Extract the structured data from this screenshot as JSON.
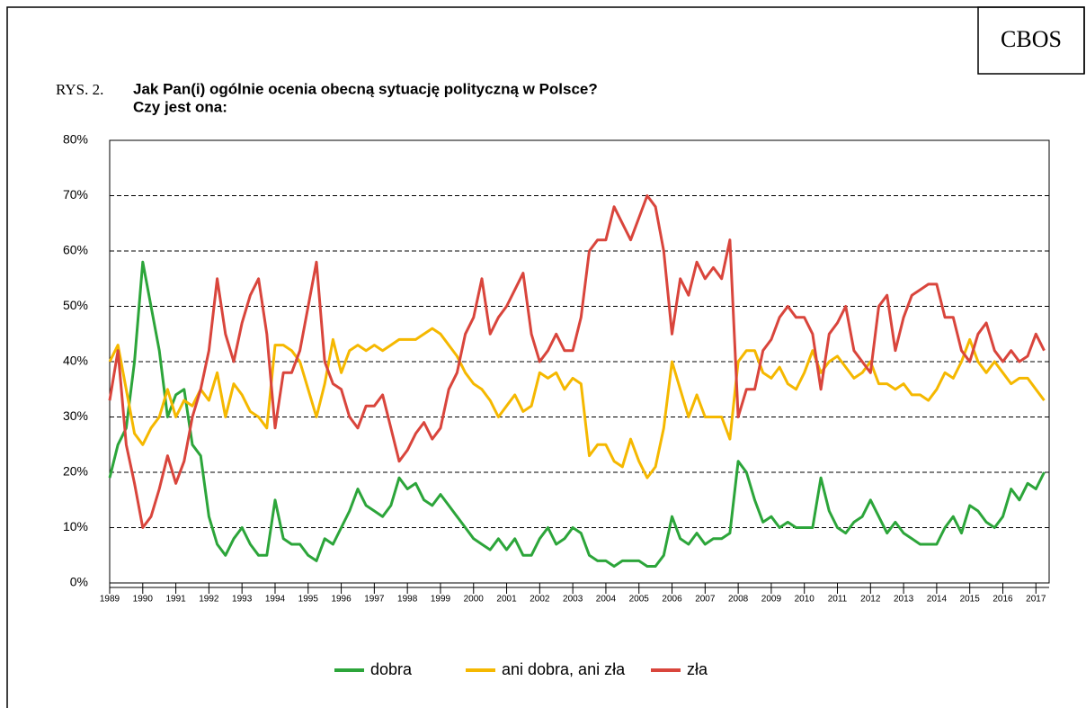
{
  "chart_data": {
    "type": "line",
    "source": "CBOS",
    "label": "RYS. 2.",
    "title": [
      "Jak Pan(i) ogólnie ocenia obecną sytuację polityczną w Polsce?",
      "Czy jest ona:"
    ],
    "x": [
      1989,
      1989.25,
      1989.5,
      1989.75,
      1990,
      1990.25,
      1990.5,
      1990.75,
      1991,
      1991.25,
      1991.5,
      1991.75,
      1992,
      1992.25,
      1992.5,
      1992.75,
      1993,
      1993.25,
      1993.5,
      1993.75,
      1994,
      1994.25,
      1994.5,
      1994.75,
      1995,
      1995.25,
      1995.5,
      1995.75,
      1996,
      1996.25,
      1996.5,
      1996.75,
      1997,
      1997.25,
      1997.5,
      1997.75,
      1998,
      1998.25,
      1998.5,
      1998.75,
      1999,
      1999.25,
      1999.5,
      1999.75,
      2000,
      2000.25,
      2000.5,
      2000.75,
      2001,
      2001.25,
      2001.5,
      2001.75,
      2002,
      2002.25,
      2002.5,
      2002.75,
      2003,
      2003.25,
      2003.5,
      2003.75,
      2004,
      2004.25,
      2004.5,
      2004.75,
      2005,
      2005.25,
      2005.5,
      2005.75,
      2006,
      2006.25,
      2006.5,
      2006.75,
      2007,
      2007.25,
      2007.5,
      2007.75,
      2008,
      2008.25,
      2008.5,
      2008.75,
      2009,
      2009.25,
      2009.5,
      2009.75,
      2010,
      2010.25,
      2010.5,
      2010.75,
      2011,
      2011.25,
      2011.5,
      2011.75,
      2012,
      2012.25,
      2012.5,
      2012.75,
      2013,
      2013.25,
      2013.5,
      2013.75,
      2014,
      2014.25,
      2014.5,
      2014.75,
      2015,
      2015.25,
      2015.5,
      2015.75,
      2016,
      2016.25,
      2016.5,
      2016.75,
      2017,
      2017.25
    ],
    "series": [
      {
        "name": "dobra",
        "color": "#2ca53a",
        "values": [
          19,
          25,
          28,
          40,
          58,
          50,
          42,
          30,
          34,
          35,
          25,
          23,
          12,
          7,
          5,
          8,
          10,
          7,
          5,
          5,
          15,
          8,
          7,
          7,
          5,
          4,
          8,
          7,
          10,
          13,
          17,
          14,
          13,
          12,
          14,
          19,
          17,
          18,
          15,
          14,
          16,
          14,
          12,
          10,
          8,
          7,
          6,
          8,
          6,
          8,
          5,
          5,
          8,
          10,
          7,
          8,
          10,
          9,
          5,
          4,
          4,
          3,
          4,
          4,
          4,
          3,
          3,
          5,
          12,
          8,
          7,
          9,
          7,
          8,
          8,
          9,
          22,
          20,
          15,
          11,
          12,
          10,
          11,
          10,
          10,
          10,
          19,
          13,
          10,
          9,
          11,
          12,
          15,
          12,
          9,
          11,
          9,
          8,
          7,
          7,
          7,
          10,
          12,
          9,
          14,
          13,
          11,
          10,
          12,
          17,
          15,
          18,
          17,
          20
        ]
      },
      {
        "name": "ani dobra, ani zła",
        "color": "#f5b800",
        "values": [
          40,
          43,
          35,
          27,
          25,
          28,
          30,
          35,
          30,
          33,
          32,
          35,
          33,
          38,
          30,
          36,
          34,
          31,
          30,
          28,
          43,
          43,
          42,
          40,
          35,
          30,
          36,
          44,
          38,
          42,
          43,
          42,
          43,
          42,
          43,
          44,
          44,
          44,
          45,
          46,
          45,
          43,
          41,
          38,
          36,
          35,
          33,
          30,
          32,
          34,
          31,
          32,
          38,
          37,
          38,
          35,
          37,
          36,
          23,
          25,
          25,
          22,
          21,
          26,
          22,
          19,
          21,
          28,
          40,
          35,
          30,
          34,
          30,
          30,
          30,
          26,
          40,
          42,
          42,
          38,
          37,
          39,
          36,
          35,
          38,
          42,
          38,
          40,
          41,
          39,
          37,
          38,
          40,
          36,
          36,
          35,
          36,
          34,
          34,
          33,
          35,
          38,
          37,
          40,
          44,
          40,
          38,
          40,
          38,
          36,
          37,
          37,
          35,
          33
        ]
      },
      {
        "name": "zła",
        "color": "#d9453c",
        "values": [
          33,
          42,
          25,
          18,
          10,
          12,
          17,
          23,
          18,
          22,
          30,
          35,
          42,
          55,
          45,
          40,
          47,
          52,
          55,
          45,
          28,
          38,
          38,
          42,
          50,
          58,
          40,
          36,
          35,
          30,
          28,
          32,
          32,
          34,
          28,
          22,
          24,
          27,
          29,
          26,
          28,
          35,
          38,
          45,
          48,
          55,
          45,
          48,
          50,
          53,
          56,
          45,
          40,
          42,
          45,
          42,
          42,
          48,
          60,
          62,
          62,
          68,
          65,
          62,
          66,
          70,
          68,
          60,
          45,
          55,
          52,
          58,
          55,
          57,
          55,
          62,
          30,
          35,
          35,
          42,
          44,
          48,
          50,
          48,
          48,
          45,
          35,
          45,
          47,
          50,
          42,
          40,
          38,
          50,
          52,
          42,
          48,
          52,
          53,
          54,
          54,
          48,
          48,
          42,
          40,
          45,
          47,
          42,
          40,
          42,
          40,
          41,
          45,
          42
        ]
      }
    ],
    "xlim": [
      1989,
      2017.4
    ],
    "xticks": [
      1989,
      1990,
      1991,
      1992,
      1993,
      1994,
      1995,
      1996,
      1997,
      1998,
      1999,
      2000,
      2001,
      2002,
      2003,
      2004,
      2005,
      2006,
      2007,
      2008,
      2009,
      2010,
      2011,
      2012,
      2013,
      2014,
      2015,
      2016,
      2017
    ],
    "ylim": [
      0,
      80
    ],
    "yticks": [
      {
        "value": 0,
        "label": "0%"
      },
      {
        "value": 10,
        "label": "10%"
      },
      {
        "value": 20,
        "label": "20%"
      },
      {
        "value": 30,
        "label": "30%"
      },
      {
        "value": 40,
        "label": "40%"
      },
      {
        "value": 50,
        "label": "50%"
      },
      {
        "value": 60,
        "label": "60%"
      },
      {
        "value": 70,
        "label": "70%"
      },
      {
        "value": 80,
        "label": "80%"
      }
    ],
    "grid": true,
    "legend": "bottom"
  }
}
